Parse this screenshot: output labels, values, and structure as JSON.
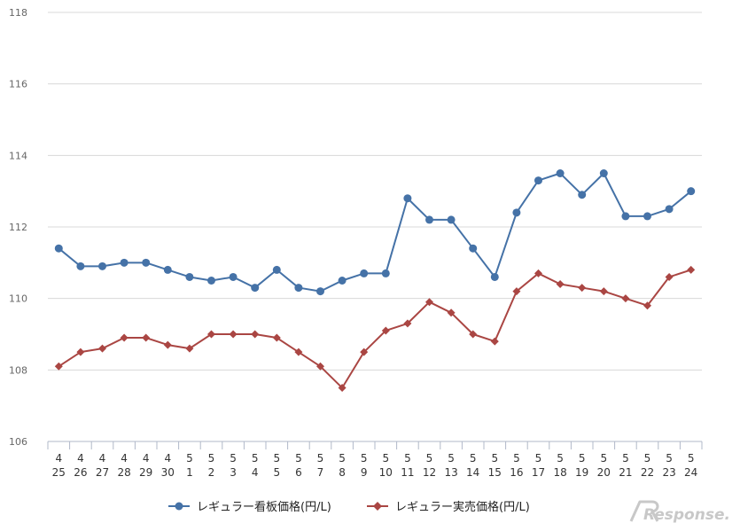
{
  "chart_data": {
    "type": "line",
    "categories": [
      [
        "4",
        "25"
      ],
      [
        "4",
        "26"
      ],
      [
        "4",
        "27"
      ],
      [
        "4",
        "28"
      ],
      [
        "4",
        "29"
      ],
      [
        "4",
        "30"
      ],
      [
        "5",
        "1"
      ],
      [
        "5",
        "2"
      ],
      [
        "5",
        "3"
      ],
      [
        "5",
        "4"
      ],
      [
        "5",
        "5"
      ],
      [
        "5",
        "6"
      ],
      [
        "5",
        "7"
      ],
      [
        "5",
        "8"
      ],
      [
        "5",
        "9"
      ],
      [
        "5",
        "10"
      ],
      [
        "5",
        "11"
      ],
      [
        "5",
        "12"
      ],
      [
        "5",
        "13"
      ],
      [
        "5",
        "14"
      ],
      [
        "5",
        "15"
      ],
      [
        "5",
        "16"
      ],
      [
        "5",
        "17"
      ],
      [
        "5",
        "18"
      ],
      [
        "5",
        "19"
      ],
      [
        "5",
        "20"
      ],
      [
        "5",
        "21"
      ],
      [
        "5",
        "22"
      ],
      [
        "5",
        "23"
      ],
      [
        "5",
        "24"
      ]
    ],
    "series": [
      {
        "name": "レギュラー看板価格(円/L)",
        "color": "#4572A7",
        "marker": "circle",
        "values": [
          111.4,
          110.9,
          110.9,
          111.0,
          111.0,
          110.8,
          110.6,
          110.5,
          110.6,
          110.3,
          110.8,
          110.3,
          110.2,
          110.5,
          110.7,
          110.7,
          112.8,
          112.2,
          112.2,
          111.4,
          110.6,
          112.4,
          113.3,
          113.5,
          112.9,
          113.5,
          112.3,
          112.3,
          112.5,
          113.0
        ]
      },
      {
        "name": "レギュラー実売価格(円/L)",
        "color": "#AA4643",
        "marker": "diamond",
        "values": [
          108.1,
          108.5,
          108.6,
          108.9,
          108.9,
          108.7,
          108.6,
          109.0,
          109.0,
          109.0,
          108.9,
          108.5,
          108.1,
          107.5,
          108.5,
          109.1,
          109.3,
          109.9,
          109.6,
          109.0,
          108.8,
          110.2,
          110.7,
          110.4,
          110.3,
          110.2,
          110.0,
          109.8,
          110.6,
          110.8
        ]
      }
    ],
    "ylim": [
      106,
      118
    ],
    "yticks": [
      "106",
      "108",
      "110",
      "112",
      "114",
      "116",
      "118"
    ],
    "grid": true,
    "legend_position": "bottom",
    "title": "",
    "xlabel": "",
    "ylabel": ""
  },
  "watermark": {
    "text": "Response.",
    "icon": "response-logo-icon"
  }
}
